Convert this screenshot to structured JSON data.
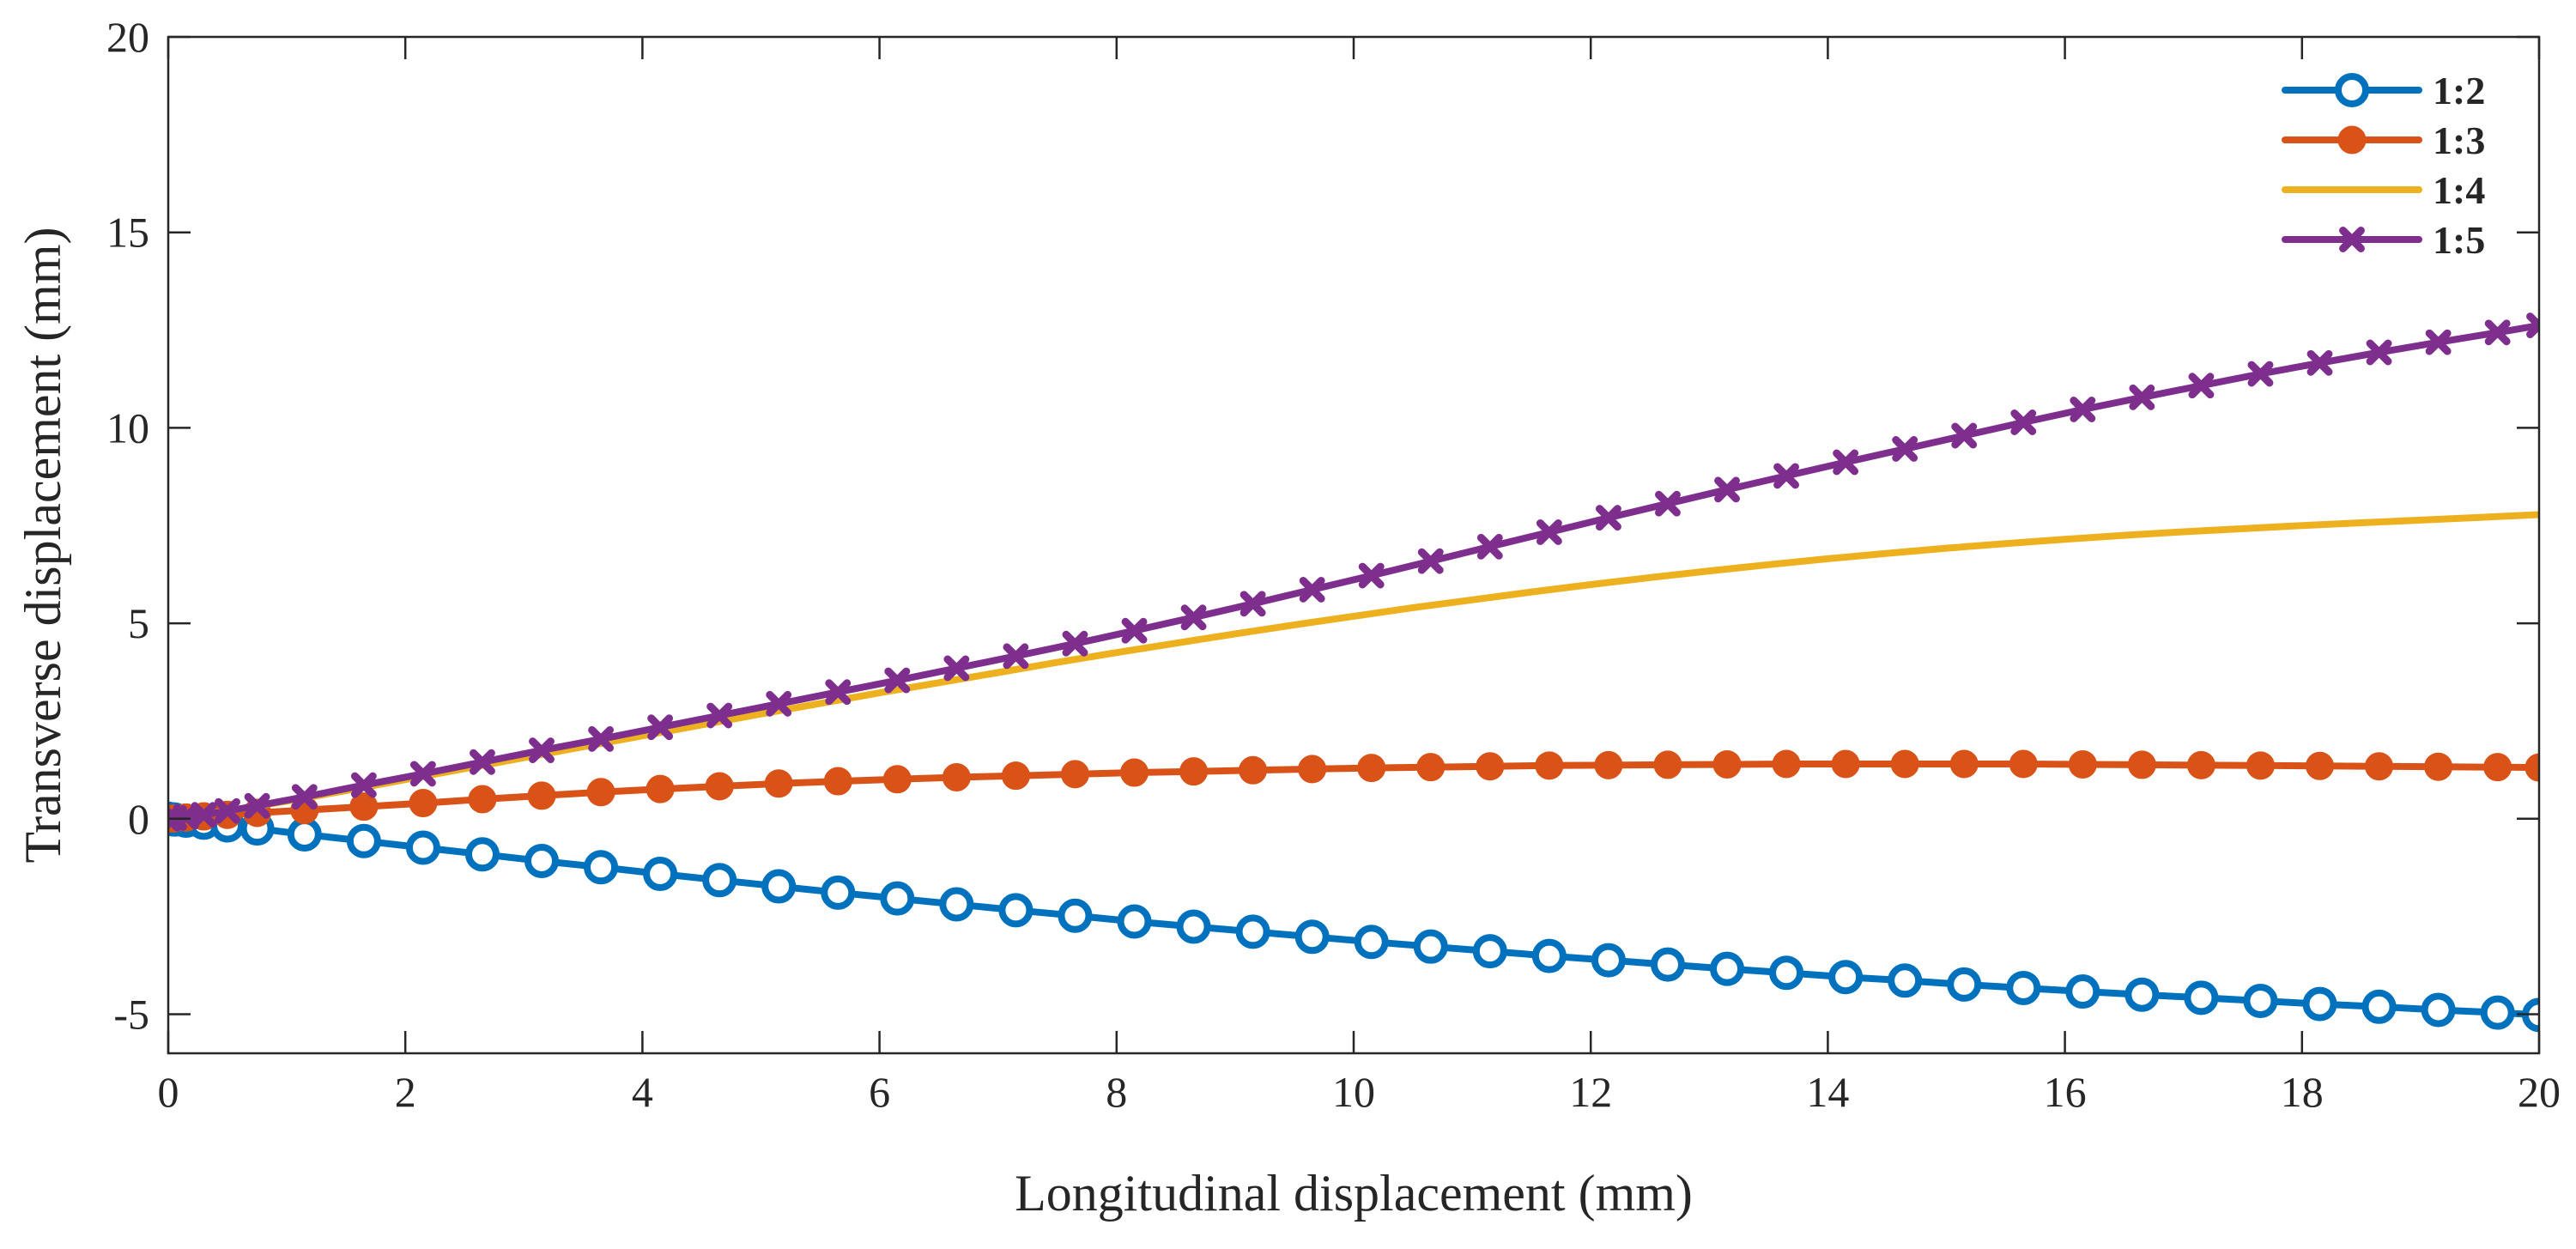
{
  "chart_data": {
    "type": "line",
    "title": "",
    "xlabel": "Longitudinal displacement  (mm)",
    "ylabel": "Transverse displacement  (mm)",
    "xlim": [
      0,
      20
    ],
    "ylim": [
      -6,
      20
    ],
    "xticks": [
      0,
      2,
      4,
      6,
      8,
      10,
      12,
      14,
      16,
      18,
      20
    ],
    "xtick_labels": [
      "0",
      "2",
      "4",
      "6",
      "8",
      "10",
      "12",
      "14",
      "16",
      "18",
      "20"
    ],
    "yticks": [
      -5,
      0,
      5,
      10,
      15,
      20
    ],
    "ytick_labels": [
      "-5",
      "0",
      "5",
      "10",
      "15",
      "20"
    ],
    "grid": false,
    "legend_position": "top-right",
    "series": [
      {
        "name": "1:2",
        "color": "#0072BD",
        "marker": "open-circle",
        "x": [
          0,
          0.05,
          0.15,
          0.3,
          0.5,
          0.75,
          1.15,
          1.65,
          2.15,
          2.65,
          3.15,
          3.65,
          4.15,
          4.65,
          5.15,
          5.65,
          6.15,
          6.65,
          7.15,
          7.65,
          8.15,
          8.65,
          9.15,
          9.65,
          10.15,
          10.65,
          11.15,
          11.65,
          12.15,
          12.65,
          13.15,
          13.65,
          14.15,
          14.65,
          15.15,
          15.65,
          16.15,
          16.65,
          17.15,
          17.65,
          18.15,
          18.65,
          19.15,
          19.65,
          20
        ],
        "y": [
          0,
          -0.02,
          -0.05,
          -0.1,
          -0.17,
          -0.25,
          -0.4,
          -0.57,
          -0.74,
          -0.91,
          -1.08,
          -1.24,
          -1.41,
          -1.57,
          -1.73,
          -1.89,
          -2.04,
          -2.19,
          -2.34,
          -2.48,
          -2.63,
          -2.76,
          -2.89,
          -3.02,
          -3.15,
          -3.27,
          -3.39,
          -3.51,
          -3.62,
          -3.73,
          -3.84,
          -3.94,
          -4.05,
          -4.14,
          -4.24,
          -4.33,
          -4.42,
          -4.5,
          -4.58,
          -4.66,
          -4.74,
          -4.81,
          -4.89,
          -4.96,
          -5.02
        ]
      },
      {
        "name": "1:3",
        "color": "#D95319",
        "marker": "filled-circle",
        "x": [
          0,
          0.05,
          0.15,
          0.3,
          0.5,
          0.75,
          1.15,
          1.65,
          2.15,
          2.65,
          3.15,
          3.65,
          4.15,
          4.65,
          5.15,
          5.65,
          6.15,
          6.65,
          7.15,
          7.65,
          8.15,
          8.65,
          9.15,
          9.65,
          10.15,
          10.65,
          11.15,
          11.65,
          12.15,
          12.65,
          13.15,
          13.65,
          14.15,
          14.65,
          15.15,
          15.65,
          16.15,
          16.65,
          17.15,
          17.65,
          18.15,
          18.65,
          19.15,
          19.65,
          20
        ],
        "y": [
          0,
          0.01,
          0.03,
          0.06,
          0.1,
          0.15,
          0.22,
          0.31,
          0.4,
          0.5,
          0.59,
          0.68,
          0.76,
          0.83,
          0.9,
          0.96,
          1.01,
          1.06,
          1.1,
          1.14,
          1.18,
          1.21,
          1.24,
          1.27,
          1.3,
          1.32,
          1.34,
          1.36,
          1.37,
          1.38,
          1.39,
          1.4,
          1.4,
          1.4,
          1.4,
          1.4,
          1.39,
          1.38,
          1.37,
          1.36,
          1.35,
          1.34,
          1.33,
          1.32,
          1.31
        ]
      },
      {
        "name": "1:4",
        "color": "#EDB120",
        "marker": "none",
        "x": [
          0,
          0.5,
          1,
          1.5,
          2,
          2.5,
          3,
          3.5,
          4,
          4.5,
          5,
          5.5,
          6,
          6.5,
          7,
          7.5,
          8,
          8.5,
          9,
          9.5,
          10,
          10.5,
          11,
          11.5,
          12,
          12.5,
          13,
          13.5,
          14,
          14.5,
          15,
          15.5,
          16,
          16.5,
          17,
          17.5,
          18,
          18.5,
          19,
          19.5,
          20
        ],
        "y": [
          0,
          0.2,
          0.45,
          0.72,
          1.0,
          1.28,
          1.56,
          1.84,
          2.12,
          2.4,
          2.68,
          2.95,
          3.22,
          3.48,
          3.74,
          4.0,
          4.25,
          4.49,
          4.73,
          4.96,
          5.18,
          5.4,
          5.6,
          5.8,
          5.99,
          6.17,
          6.34,
          6.5,
          6.65,
          6.79,
          6.92,
          7.04,
          7.15,
          7.25,
          7.34,
          7.42,
          7.5,
          7.57,
          7.64,
          7.71,
          7.78
        ]
      },
      {
        "name": "1:5",
        "color": "#7E2F8E",
        "marker": "x",
        "x": [
          0,
          0.05,
          0.15,
          0.3,
          0.5,
          0.75,
          1.15,
          1.65,
          2.15,
          2.65,
          3.15,
          3.65,
          4.15,
          4.65,
          5.15,
          5.65,
          6.15,
          6.65,
          7.15,
          7.65,
          8.15,
          8.65,
          9.15,
          9.65,
          10.15,
          10.65,
          11.15,
          11.65,
          12.15,
          12.65,
          13.15,
          13.65,
          14.15,
          14.65,
          15.15,
          15.65,
          16.15,
          16.65,
          17.15,
          17.65,
          18.15,
          18.65,
          19.15,
          19.65,
          20
        ],
        "y": [
          0,
          0.02,
          0.05,
          0.1,
          0.2,
          0.33,
          0.56,
          0.86,
          1.15,
          1.45,
          1.75,
          2.04,
          2.34,
          2.64,
          2.94,
          3.24,
          3.54,
          3.85,
          4.16,
          4.48,
          4.81,
          5.15,
          5.5,
          5.86,
          6.22,
          6.59,
          6.96,
          7.33,
          7.7,
          8.06,
          8.42,
          8.77,
          9.12,
          9.46,
          9.8,
          10.14,
          10.47,
          10.78,
          11.08,
          11.38,
          11.66,
          11.93,
          12.19,
          12.44,
          12.62
        ]
      }
    ]
  }
}
